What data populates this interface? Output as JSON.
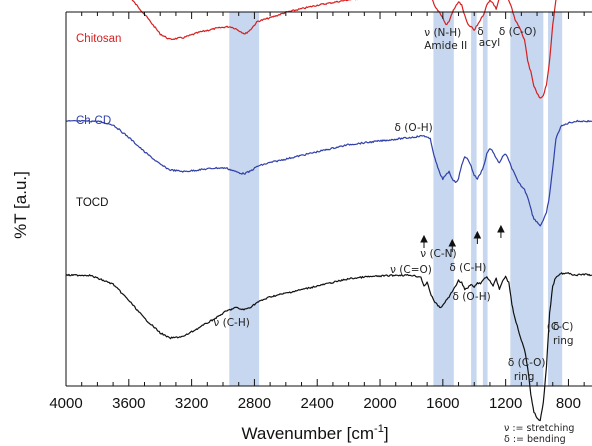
{
  "chart_data": {
    "type": "line",
    "title": "",
    "xlabel": "Wavenumber [cm",
    "xlabel_sup": "-1",
    "xlabel_end": "]",
    "ylabel": "%T [a.u.]",
    "xlim": [
      4000,
      650
    ],
    "x_reversed": true,
    "x_ticks": [
      4000,
      3600,
      3200,
      2800,
      2400,
      2000,
      1600,
      1200,
      800
    ],
    "x_tick_labels": [
      "4000",
      "3600",
      "3200",
      "2800",
      "2400",
      "2000",
      "1600",
      "1200",
      "800"
    ],
    "grid": false,
    "bands": [
      {
        "from": 2960,
        "to": 2770
      },
      {
        "from": 1660,
        "to": 1530
      },
      {
        "from": 1420,
        "to": 1385
      },
      {
        "from": 1345,
        "to": 1315
      },
      {
        "from": 1170,
        "to": 960
      },
      {
        "from": 930,
        "to": 840
      }
    ],
    "series": [
      {
        "name": "Chitosan",
        "color": "#d62020",
        "x": [
          4000,
          3800,
          3700,
          3600,
          3500,
          3400,
          3340,
          3250,
          3150,
          3050,
          2980,
          2950,
          2920,
          2880,
          2860,
          2830,
          2780,
          2700,
          2600,
          2500,
          2400,
          2300,
          2200,
          2100,
          2000,
          1900,
          1800,
          1720,
          1680,
          1650,
          1620,
          1600,
          1580,
          1560,
          1540,
          1520,
          1500,
          1480,
          1460,
          1440,
          1420,
          1400,
          1380,
          1360,
          1340,
          1320,
          1300,
          1280,
          1260,
          1240,
          1220,
          1200,
          1180,
          1160,
          1140,
          1120,
          1100,
          1080,
          1060,
          1040,
          1030,
          1020,
          1000,
          980,
          960,
          940,
          920,
          900,
          880,
          850,
          800,
          750,
          700,
          650
        ],
        "y": [
          84,
          84,
          78,
          62,
          42,
          20,
          14,
          16,
          22,
          26,
          28,
          28,
          26,
          22,
          20,
          24,
          34,
          38,
          44,
          48,
          52,
          55,
          58,
          60,
          62,
          63,
          65,
          66,
          64,
          50,
          44,
          38,
          30,
          34,
          44,
          50,
          56,
          52,
          40,
          30,
          28,
          24,
          30,
          36,
          42,
          52,
          58,
          54,
          48,
          60,
          66,
          64,
          58,
          48,
          36,
          30,
          22,
          14,
          -10,
          -22,
          -30,
          -38,
          -46,
          -52,
          -48,
          -36,
          -10,
          30,
          58,
          76,
          80,
          80,
          81,
          82
        ]
      },
      {
        "name": "Ch-CD",
        "color": "#3040a8",
        "x": [
          4000,
          3800,
          3700,
          3600,
          3500,
          3400,
          3340,
          3250,
          3150,
          3050,
          2980,
          2950,
          2920,
          2880,
          2860,
          2830,
          2780,
          2700,
          2600,
          2500,
          2400,
          2300,
          2200,
          2100,
          2000,
          1900,
          1800,
          1720,
          1680,
          1650,
          1620,
          1600,
          1580,
          1560,
          1540,
          1520,
          1500,
          1480,
          1460,
          1440,
          1420,
          1400,
          1380,
          1360,
          1340,
          1320,
          1300,
          1280,
          1260,
          1240,
          1220,
          1200,
          1180,
          1160,
          1140,
          1120,
          1100,
          1080,
          1060,
          1040,
          1030,
          1020,
          1000,
          980,
          960,
          940,
          920,
          900,
          880,
          850,
          800,
          750,
          700,
          650
        ],
        "y": [
          12,
          12,
          8,
          -6,
          -22,
          -36,
          -42,
          -44,
          -42,
          -40,
          -40,
          -42,
          -44,
          -46,
          -46,
          -44,
          -38,
          -34,
          -30,
          -26,
          -22,
          -18,
          -14,
          -12,
          -10,
          -8,
          -6,
          -4,
          -8,
          -30,
          -46,
          -52,
          -48,
          -44,
          -52,
          -56,
          -52,
          -36,
          -28,
          -30,
          -38,
          -48,
          -52,
          -46,
          -38,
          -24,
          -18,
          -22,
          -30,
          -34,
          -28,
          -24,
          -32,
          -40,
          -48,
          -56,
          -60,
          -64,
          -72,
          -84,
          -92,
          -96,
          -100,
          -104,
          -98,
          -90,
          -70,
          -40,
          -8,
          6,
          10,
          12,
          12,
          12
        ]
      },
      {
        "name": "TOCD",
        "color": "#111111",
        "x": [
          4000,
          3850,
          3700,
          3600,
          3500,
          3400,
          3340,
          3250,
          3150,
          3050,
          2980,
          2950,
          2920,
          2880,
          2860,
          2830,
          2780,
          2700,
          2600,
          2500,
          2400,
          2300,
          2200,
          2100,
          2000,
          1900,
          1800,
          1740,
          1720,
          1700,
          1680,
          1650,
          1620,
          1600,
          1580,
          1560,
          1540,
          1520,
          1500,
          1480,
          1460,
          1440,
          1420,
          1400,
          1380,
          1360,
          1340,
          1320,
          1300,
          1280,
          1260,
          1240,
          1220,
          1200,
          1180,
          1160,
          1150,
          1140,
          1120,
          1100,
          1080,
          1060,
          1040,
          1030,
          1020,
          1000,
          980,
          960,
          940,
          920,
          900,
          880,
          850,
          800,
          750,
          700,
          650
        ],
        "y": [
          -68,
          -68,
          -78,
          -96,
          -116,
          -132,
          -138,
          -136,
          -126,
          -116,
          -108,
          -106,
          -104,
          -106,
          -106,
          -104,
          -98,
          -92,
          -88,
          -84,
          -80,
          -76,
          -72,
          -70,
          -69,
          -68,
          -68,
          -70,
          -80,
          -76,
          -88,
          -98,
          -104,
          -102,
          -96,
          -92,
          -86,
          -80,
          -74,
          -76,
          -84,
          -82,
          -78,
          -82,
          -76,
          -78,
          -72,
          -70,
          -74,
          -80,
          -72,
          -84,
          -74,
          -70,
          -76,
          -100,
          -110,
          -116,
          -128,
          -140,
          -150,
          -170,
          -200,
          -210,
          -220,
          -226,
          -230,
          -210,
          -170,
          -110,
          -80,
          -70,
          -66,
          -66,
          -68,
          -67,
          -68
        ]
      }
    ],
    "annotations": [
      {
        "text": "ν (C-H)",
        "x": 2870
      },
      {
        "text": "ν (N-H)",
        "x": 1540
      },
      {
        "text": "Amide II",
        "x": 1540
      },
      {
        "text": "δ",
        "x": 1330
      },
      {
        "text": "acyl",
        "x": 1320
      },
      {
        "text": "δ (C-O)",
        "x": 1205
      },
      {
        "text": "δ (O-H)",
        "x": 1640
      },
      {
        "text": "ν (C=O)",
        "x": 1745
      },
      {
        "text": "ν (C-N)",
        "x": 1540
      },
      {
        "text": "δ (C-H)",
        "x": 1380
      },
      {
        "text": "δ (O-H)",
        "x": 1220
      },
      {
        "text": "δ (C-O)",
        "x": 1020
      },
      {
        "text": "ring",
        "x": 1020
      },
      {
        "text": "δ",
        "x": 860
      },
      {
        "text": "(C-C)",
        "x": 760
      },
      {
        "text": "ring",
        "x": 860
      }
    ],
    "legend_notes": [
      "ν := stretching",
      "δ := bending"
    ]
  }
}
